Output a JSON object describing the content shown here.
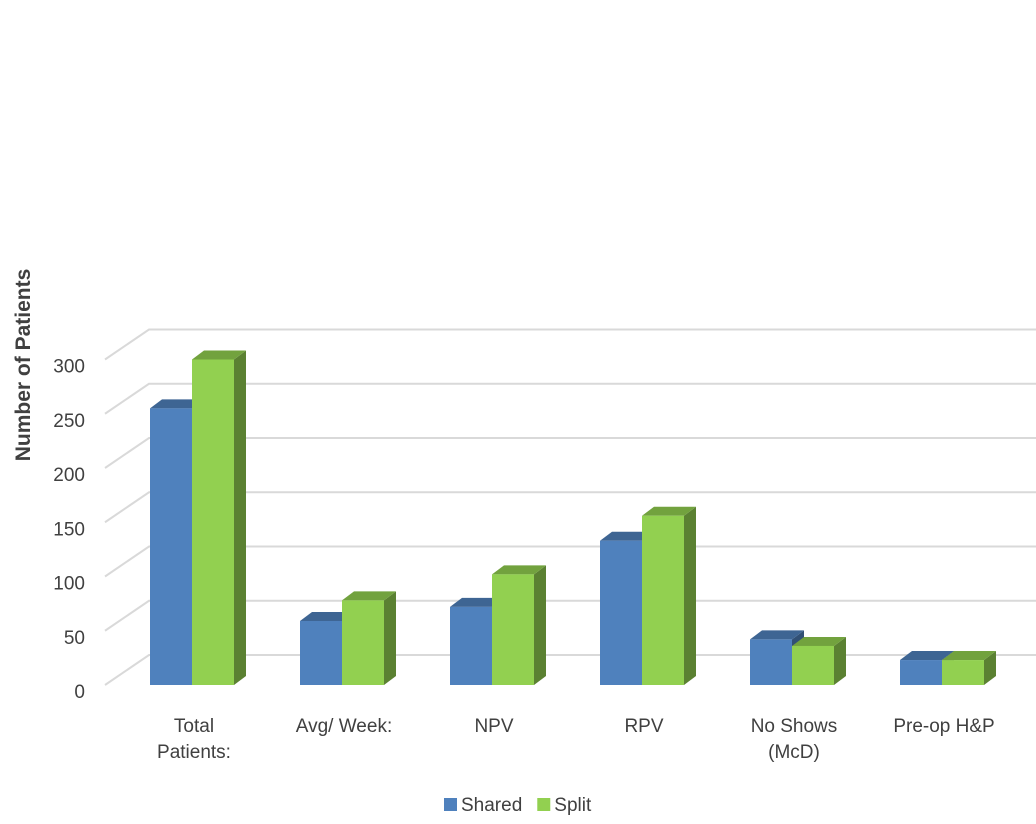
{
  "chart_data": {
    "type": "bar",
    "categories": [
      [
        "Total",
        "Patients:"
      ],
      [
        "Avg/ Week:"
      ],
      [
        "NPV"
      ],
      [
        "RPV"
      ],
      [
        "No Shows",
        "(McD)"
      ],
      [
        "Pre-op H&P"
      ]
    ],
    "series": [
      {
        "name": "Shared",
        "color": "#4f81bd",
        "values": [
          255,
          59,
          72,
          133,
          42,
          23
        ]
      },
      {
        "name": "Split",
        "color": "#92d050",
        "values": [
          300,
          78,
          102,
          156,
          36,
          23
        ]
      }
    ],
    "title": "",
    "xlabel": "",
    "ylabel": "Number of Patients",
    "ylim": [
      0,
      300
    ],
    "yticks": [
      0,
      50,
      100,
      150,
      200,
      250,
      300
    ],
    "grid": true,
    "legend_position": "bottom",
    "style": "3d-clustered-column"
  }
}
